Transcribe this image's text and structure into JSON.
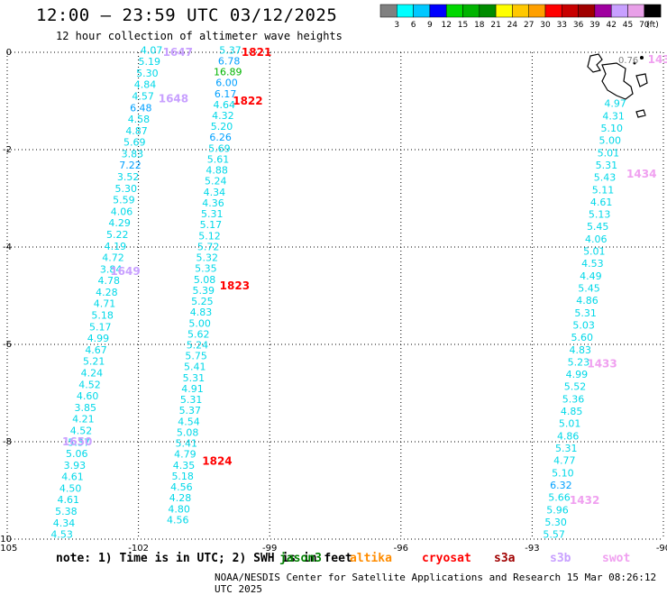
{
  "header": {
    "title": "12:00 – 23:59 UTC 03/12/2025",
    "subtitle": "12 hour collection of altimeter wave heights"
  },
  "colorbar": {
    "labels": [
      "3",
      "6",
      "9",
      "12",
      "15",
      "18",
      "21",
      "24",
      "27",
      "30",
      "33",
      "36",
      "39",
      "42",
      "45",
      "70",
      "(ft)"
    ],
    "colors": [
      "#808080",
      "#00ffff",
      "#00c8ff",
      "#0000ff",
      "#00d800",
      "#00b400",
      "#008c00",
      "#ffff00",
      "#ffc800",
      "#ffa000",
      "#ff0000",
      "#c80000",
      "#a00000",
      "#a000a0",
      "#c8a0ff",
      "#e8a0e8",
      "#000000"
    ]
  },
  "footer": {
    "note": "note:  1) Time is in UTC; 2) SWH is in feet",
    "credit": "NOAA/NESDIS Center for Satellite Applications and Research   15 Mar 08:26:12 UTC 2025",
    "satellites": [
      {
        "name": "jason3",
        "color": "#008000"
      },
      {
        "name": "altika",
        "color": "#ff8c00"
      },
      {
        "name": "cryosat",
        "color": "#ff0000"
      },
      {
        "name": "s3a",
        "color": "#a00000"
      },
      {
        "name": "s3b",
        "color": "#c8a0ff"
      },
      {
        "name": "swot",
        "color": "#f0a0f0"
      }
    ]
  },
  "chart_data": {
    "type": "scatter",
    "xlim": [
      -105,
      -90
    ],
    "ylim": [
      -10,
      0
    ],
    "xticks": [
      -105,
      -102,
      -99,
      -96,
      -93,
      -90
    ],
    "yticks": [
      0,
      -2,
      -4,
      -6,
      -8,
      -10
    ],
    "grid": true,
    "tracks": [
      {
        "x0": -101.7,
        "x1": -103.75,
        "y0": 0.05,
        "y1": -9.9,
        "values": [
          "4.07",
          "5.19",
          "5.30",
          "4.84",
          "4.57",
          "6.48",
          "4.58",
          "4.87",
          "5.69",
          "3.83",
          "7.22",
          "3.52",
          "5.30",
          "5.59",
          "4.06",
          "4.29",
          "5.22",
          "4.19",
          "4.72",
          "3.84",
          "4.78",
          "4.28",
          "4.71",
          "5.18",
          "5.17",
          "4.99",
          "4.67",
          "5.21",
          "4.24",
          "4.52",
          "4.60",
          "3.85",
          "4.21",
          "4.52",
          "5.37",
          "5.06",
          "3.93",
          "4.61",
          "4.50",
          "4.61",
          "5.38",
          "4.34",
          "4.53"
        ]
      },
      {
        "x0": -99.9,
        "x1": -101.1,
        "y0": 0.05,
        "y1": -9.6,
        "values": [
          "5.37",
          "6.78",
          "16.89",
          "6.00",
          "6.17",
          "4.64",
          "4.32",
          "5.20",
          "6.26",
          "5.69",
          "5.61",
          "4.88",
          "5.24",
          "4.34",
          "4.36",
          "5.31",
          "5.17",
          "5.12",
          "5.72",
          "5.32",
          "5.35",
          "5.08",
          "5.39",
          "5.25",
          "4.83",
          "5.00",
          "5.62",
          "5.24",
          "5.75",
          "5.41",
          "5.31",
          "4.91",
          "5.31",
          "5.37",
          "4.54",
          "5.08",
          "5.41",
          "4.79",
          "4.35",
          "5.18",
          "4.56",
          "4.28",
          "4.80",
          "4.56"
        ]
      },
      {
        "x0": -91.1,
        "x1": -92.5,
        "y0": -1.05,
        "y1": -9.9,
        "values": [
          "4.97",
          "4.31",
          "5.10",
          "5.00",
          "5.01",
          "5.31",
          "5.43",
          "5.11",
          "4.61",
          "5.13",
          "5.45",
          "4.06",
          "5.01",
          "4.53",
          "4.49",
          "5.45",
          "4.86",
          "5.31",
          "5.03",
          "5.60",
          "4.83",
          "5.23",
          "4.99",
          "5.52",
          "5.36",
          "4.85",
          "5.01",
          "4.86",
          "5.31",
          "4.77",
          "5.10",
          "6.32",
          "5.66",
          "5.96",
          "5.30",
          "5.57"
        ]
      }
    ],
    "time_labels": [
      {
        "text": "1647",
        "x": -101.1,
        "y": 0.0,
        "color": "#c8a0ff"
      },
      {
        "text": "1648",
        "x": -101.2,
        "y": -0.95,
        "color": "#c8a0ff"
      },
      {
        "text": "1649",
        "x": -102.3,
        "y": -4.5,
        "color": "#c8a0ff"
      },
      {
        "text": "1650",
        "x": -103.4,
        "y": -8.0,
        "color": "#c8a0ff"
      },
      {
        "text": "1821",
        "x": -99.3,
        "y": 0.0,
        "color": "#ff0000"
      },
      {
        "text": "1822",
        "x": -99.5,
        "y": -1.0,
        "color": "#ff0000"
      },
      {
        "text": "1823",
        "x": -99.8,
        "y": -4.8,
        "color": "#ff0000"
      },
      {
        "text": "1824",
        "x": -100.2,
        "y": -8.4,
        "color": "#ff0000"
      },
      {
        "text": "143",
        "x": -90.1,
        "y": -0.15,
        "color": "#f0a0f0"
      },
      {
        "text": "1434",
        "x": -90.5,
        "y": -2.5,
        "color": "#f0a0f0"
      },
      {
        "text": "1433",
        "x": -91.4,
        "y": -6.4,
        "color": "#f0a0f0"
      },
      {
        "text": "1432",
        "x": -91.8,
        "y": -9.2,
        "color": "#f0a0f0"
      }
    ],
    "annotations": [
      {
        "text": "0.76",
        "x": -90.8,
        "y": -0.15,
        "color": "#808080"
      }
    ]
  }
}
